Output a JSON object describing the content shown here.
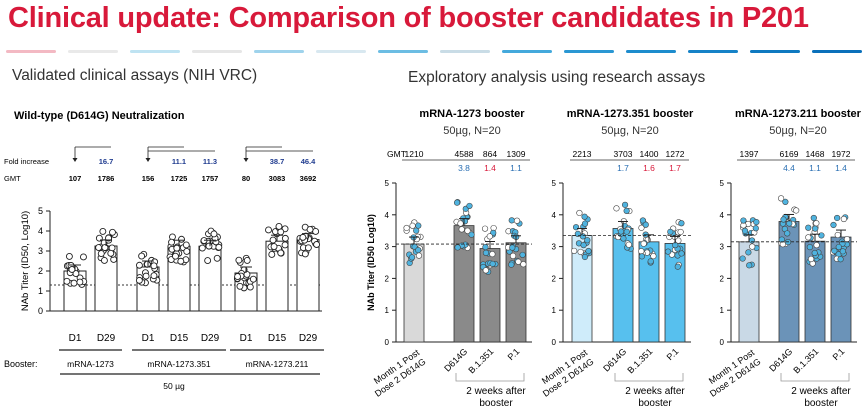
{
  "slide_title": "Clinical update: Comparison of booster candidates in P201",
  "left_section": "Validated clinical assays (NIH VRC)",
  "right_section": "Exploratory analysis using research assays",
  "colors": {
    "title_red": "#d8193a",
    "fold_blue": "#1f3b8f",
    "fold_red": "#d8193a",
    "dot_cyan": "#4fb3df"
  },
  "chart_data": [
    {
      "type": "bar",
      "title": "Wild-type (D614G) Neutralization",
      "ylabel": "NAb Titer (ID50, Log10)",
      "ylim": [
        0,
        5
      ],
      "yticks": [
        "0",
        "1",
        "2",
        "3",
        "4",
        "5"
      ],
      "reference_line": 1.3,
      "fold_label": "Fold increase",
      "gmt_label": "GMT",
      "booster_label": "Booster:",
      "dose_label": "50 µg",
      "categories": [
        "D1",
        "D29",
        "D1",
        "D15",
        "D29",
        "D1",
        "D15",
        "D29"
      ],
      "values": [
        2.0,
        3.25,
        2.2,
        3.24,
        3.24,
        1.9,
        3.49,
        3.57
      ],
      "gmt": [
        "107",
        "1786",
        "156",
        "1725",
        "1757",
        "80",
        "3083",
        "3692"
      ],
      "fold_increase": [
        "",
        "16.7",
        "",
        "11.1",
        "11.3",
        "",
        "38.7",
        "46.4"
      ],
      "groups": [
        {
          "name": "mRNA-1273",
          "indices": [
            0,
            1
          ]
        },
        {
          "name": "mRNA-1273.351",
          "indices": [
            2,
            3,
            4
          ]
        },
        {
          "name": "mRNA-1273.211",
          "indices": [
            5,
            6,
            7
          ]
        }
      ]
    },
    {
      "type": "bar",
      "title": "mRNA-1273 booster",
      "subtitle": "50µg, N=20",
      "ylabel": "NAb Titer (ID50 Log10)",
      "ylim": [
        0,
        5
      ],
      "yticks": [
        "0",
        "1",
        "2",
        "3",
        "4",
        "5"
      ],
      "reference_line": 3.08,
      "gmt_label": "GMT",
      "categories": [
        "Month 1 Post Dose 2 D614G",
        "D614G",
        "B.1.351",
        "P.1"
      ],
      "values": [
        3.08,
        3.66,
        2.94,
        3.12
      ],
      "gmt": [
        "1210",
        "4588",
        "864",
        "1309"
      ],
      "fold_increase": [
        "",
        "3.8",
        "1.4",
        "1.1"
      ],
      "fold_colors": [
        "",
        "blue",
        "red",
        "blue"
      ],
      "after_label": "2 weeks after booster"
    },
    {
      "type": "bar",
      "title": "mRNA-1273.351 booster",
      "subtitle": "50µg, N=20",
      "ylim": [
        0,
        5
      ],
      "yticks": [
        "0",
        "1",
        "2",
        "3",
        "4",
        "5"
      ],
      "reference_line": 3.35,
      "categories": [
        "Month 1 Post Dose 2 D614G",
        "D614G",
        "B.1.351",
        "P.1"
      ],
      "values": [
        3.35,
        3.57,
        3.15,
        3.1
      ],
      "gmt": [
        "2213",
        "3703",
        "1400",
        "1272"
      ],
      "fold_increase": [
        "",
        "1.7",
        "1.6",
        "1.7"
      ],
      "fold_colors": [
        "",
        "blue",
        "red",
        "red"
      ],
      "after_label": "2 weeks after booster"
    },
    {
      "type": "bar",
      "title": "mRNA-1273.211 booster",
      "subtitle": "50µg, N=20",
      "ylim": [
        0,
        5
      ],
      "yticks": [
        "0",
        "1",
        "2",
        "3",
        "4",
        "5"
      ],
      "reference_line": 3.15,
      "categories": [
        "Month 1 Post Dose 2 D614G",
        "D614G",
        "B.1.351",
        "P.1"
      ],
      "values": [
        3.15,
        3.79,
        3.17,
        3.3
      ],
      "gmt": [
        "1397",
        "6169",
        "1468",
        "1972"
      ],
      "fold_increase": [
        "",
        "4.4",
        "1.1",
        "1.4"
      ],
      "fold_colors": [
        "",
        "blue",
        "blue",
        "blue"
      ],
      "after_label": "2 weeks after booster"
    }
  ]
}
